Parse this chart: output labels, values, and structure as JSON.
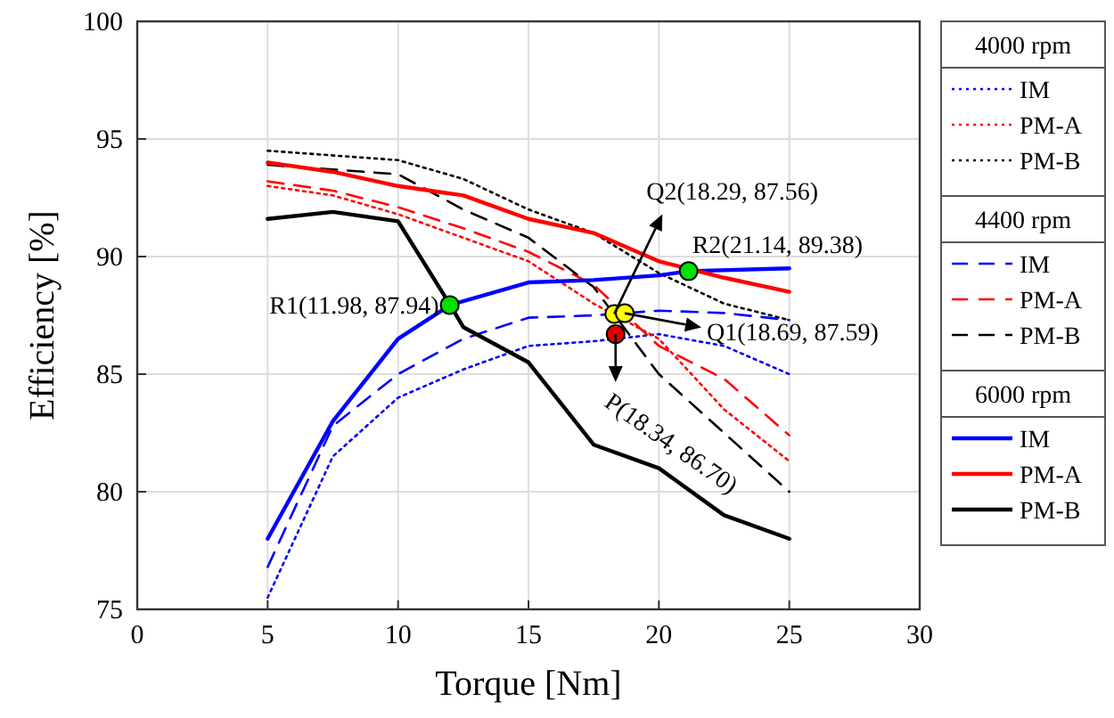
{
  "chart_data": {
    "type": "line",
    "xlabel": "Torque [Nm]",
    "ylabel": "Efficiency [%]",
    "xlim": [
      0,
      30
    ],
    "xticks": [
      0,
      5,
      10,
      15,
      20,
      25,
      30
    ],
    "ylim": [
      75,
      100
    ],
    "yticks": [
      75,
      80,
      85,
      90,
      95,
      100
    ],
    "grid": true,
    "legend": "right",
    "x": [
      5,
      7.5,
      10,
      12.5,
      15,
      17.5,
      20,
      22.5,
      25
    ],
    "series": [
      {
        "name": "IM",
        "color": "#0000ff",
        "line_style": "dotted",
        "values": [
          75.5,
          81.5,
          84,
          85.2,
          86.2,
          86.4,
          86.7,
          86.2,
          85
        ]
      },
      {
        "name": "PM-A",
        "color": "#ff0000",
        "line_style": "dotted",
        "values": [
          93,
          92.6,
          91.8,
          90.8,
          89.8,
          88,
          86.5,
          83.5,
          81.3
        ]
      },
      {
        "name": "PM-B",
        "color": "#000000",
        "line_style": "dotted",
        "values": [
          94.5,
          94.3,
          94.1,
          93.3,
          92,
          91,
          89.3,
          88,
          87.3
        ]
      },
      {
        "name": "IM",
        "color": "#0000ff",
        "line_style": "dashed",
        "values": [
          76.8,
          82.8,
          85,
          86.5,
          87.4,
          87.5,
          87.7,
          87.6,
          87.3
        ]
      },
      {
        "name": "PM-A",
        "color": "#ff0000",
        "line_style": "dashed",
        "values": [
          93.2,
          92.8,
          92.1,
          91.2,
          90.2,
          88.8,
          86.2,
          84.8,
          82.4
        ]
      },
      {
        "name": "PM-B",
        "color": "#000000",
        "line_style": "dashed",
        "values": [
          93.9,
          93.7,
          93.5,
          92,
          90.8,
          88.7,
          85,
          82.5,
          80
        ]
      },
      {
        "name": "IM",
        "color": "#0000ff",
        "line_style": "solid",
        "x": [
          5,
          7.5,
          10,
          12,
          15,
          17.5,
          20,
          21.14,
          25
        ],
        "values": [
          78,
          83,
          86.5,
          87.94,
          88.9,
          89,
          89.2,
          89.38,
          89.5
        ]
      },
      {
        "name": "PM-A",
        "color": "#ff0000",
        "line_style": "solid",
        "values": [
          94,
          93.6,
          93,
          92.6,
          91.6,
          91,
          89.8,
          89.1,
          88.5
        ]
      },
      {
        "name": "PM-B",
        "color": "#000000",
        "line_style": "solid",
        "x": [
          5,
          7.5,
          10,
          12,
          12.5,
          15,
          17.5,
          20,
          22.5,
          25
        ],
        "values": [
          91.6,
          91.9,
          91.5,
          87.94,
          87,
          85.5,
          82,
          81,
          79,
          78
        ]
      },
      {
        "type": "scatter",
        "marker": "circle",
        "x": [
          11.98,
          21.14,
          18.29,
          18.69,
          18.34
        ],
        "values": [
          87.94,
          89.38,
          87.56,
          87.59,
          86.7
        ],
        "colors": [
          "#00e000",
          "#00e000",
          "#ffff00",
          "#ffff00",
          "#e00000"
        ]
      }
    ],
    "annotations": [
      "4000 rpm",
      "4400 rpm",
      "6000 rpm",
      {
        "text": "R1(11.98, 87.94)",
        "x": 11.98,
        "y": 87.94
      },
      {
        "text": "R2(21.14, 89.38)",
        "x": 21.14,
        "y": 89.38
      },
      {
        "text": "Q2(18.29, 87.56)",
        "x": 18.29,
        "y": 87.56
      },
      {
        "text": "Q1(18.69, 87.59)",
        "x": 18.69,
        "y": 87.59
      },
      {
        "text": "P(18.34, 86.70)",
        "x": 18.34,
        "y": 86.7
      }
    ]
  }
}
